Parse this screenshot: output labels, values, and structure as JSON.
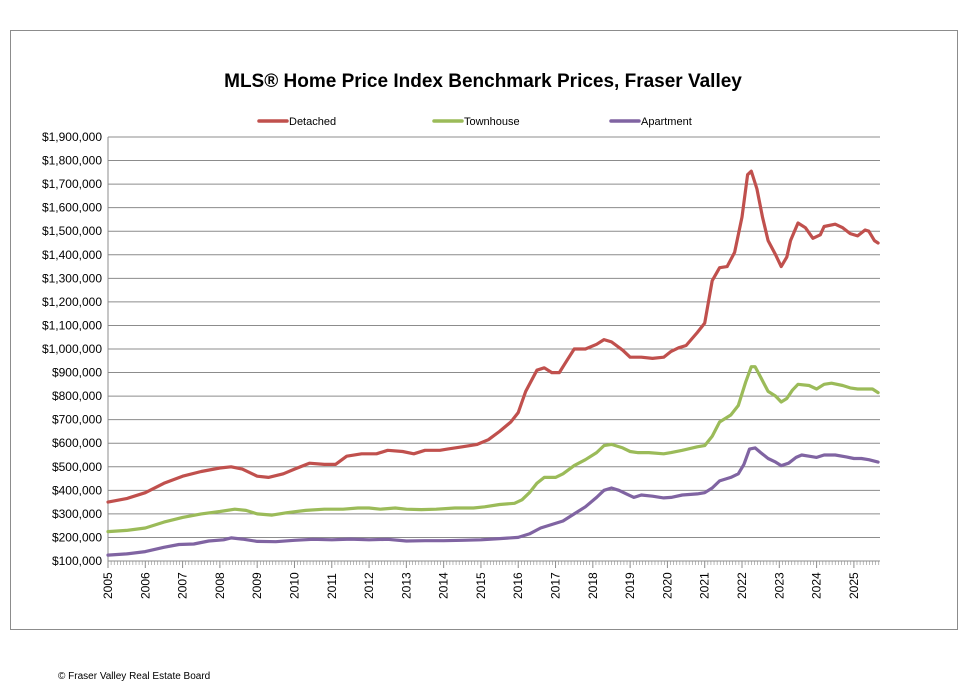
{
  "chart_data": {
    "type": "line",
    "title": "MLS® Home Price Index Benchmark Prices, Fraser Valley",
    "xlabel": "",
    "ylabel": "",
    "x_ticks": [
      "2005",
      "2006",
      "2007",
      "2008",
      "2009",
      "2010",
      "2011",
      "2012",
      "2013",
      "2014",
      "2015",
      "2016",
      "2017",
      "2018",
      "2019",
      "2020",
      "2021",
      "2022",
      "2023",
      "2024",
      "2025"
    ],
    "xlim": [
      2005,
      2025.7
    ],
    "ylim": [
      100000,
      1900000
    ],
    "y_ticks": [
      100000,
      200000,
      300000,
      400000,
      500000,
      600000,
      700000,
      800000,
      900000,
      1000000,
      1100000,
      1200000,
      1300000,
      1400000,
      1500000,
      1600000,
      1700000,
      1800000,
      1900000
    ],
    "y_tick_labels": [
      "$100,000",
      "$200,000",
      "$300,000",
      "$400,000",
      "$500,000",
      "$600,000",
      "$700,000",
      "$800,000",
      "$900,000",
      "$1,000,000",
      "$1,100,000",
      "$1,200,000",
      "$1,300,000",
      "$1,400,000",
      "$1,500,000",
      "$1,600,000",
      "$1,700,000",
      "$1,800,000",
      "$1,900,000"
    ],
    "grid": true,
    "legend_position": "top",
    "series": [
      {
        "name": "Detached",
        "color": "#c0504d",
        "points": [
          [
            2005,
            350000
          ],
          [
            2005.5,
            365000
          ],
          [
            2006,
            390000
          ],
          [
            2006.5,
            430000
          ],
          [
            2007,
            460000
          ],
          [
            2007.5,
            480000
          ],
          [
            2008,
            495000
          ],
          [
            2008.3,
            500000
          ],
          [
            2008.6,
            490000
          ],
          [
            2009,
            460000
          ],
          [
            2009.3,
            455000
          ],
          [
            2009.7,
            470000
          ],
          [
            2010,
            490000
          ],
          [
            2010.4,
            515000
          ],
          [
            2010.8,
            510000
          ],
          [
            2011.1,
            510000
          ],
          [
            2011.4,
            545000
          ],
          [
            2011.8,
            555000
          ],
          [
            2012.2,
            555000
          ],
          [
            2012.5,
            570000
          ],
          [
            2012.9,
            565000
          ],
          [
            2013.2,
            555000
          ],
          [
            2013.5,
            570000
          ],
          [
            2013.9,
            570000
          ],
          [
            2014.1,
            575000
          ],
          [
            2014.5,
            585000
          ],
          [
            2014.9,
            595000
          ],
          [
            2015.2,
            615000
          ],
          [
            2015.5,
            650000
          ],
          [
            2015.8,
            690000
          ],
          [
            2016,
            730000
          ],
          [
            2016.2,
            820000
          ],
          [
            2016.5,
            910000
          ],
          [
            2016.7,
            920000
          ],
          [
            2016.9,
            900000
          ],
          [
            2017.1,
            900000
          ],
          [
            2017.3,
            950000
          ],
          [
            2017.5,
            1000000
          ],
          [
            2017.8,
            1000000
          ],
          [
            2018.1,
            1020000
          ],
          [
            2018.3,
            1040000
          ],
          [
            2018.5,
            1030000
          ],
          [
            2018.8,
            995000
          ],
          [
            2019,
            965000
          ],
          [
            2019.3,
            965000
          ],
          [
            2019.6,
            960000
          ],
          [
            2019.9,
            965000
          ],
          [
            2020.1,
            990000
          ],
          [
            2020.3,
            1005000
          ],
          [
            2020.5,
            1015000
          ],
          [
            2020.8,
            1070000
          ],
          [
            2021,
            1110000
          ],
          [
            2021.2,
            1290000
          ],
          [
            2021.4,
            1345000
          ],
          [
            2021.6,
            1350000
          ],
          [
            2021.8,
            1410000
          ],
          [
            2022,
            1560000
          ],
          [
            2022.15,
            1740000
          ],
          [
            2022.25,
            1755000
          ],
          [
            2022.4,
            1680000
          ],
          [
            2022.55,
            1560000
          ],
          [
            2022.7,
            1460000
          ],
          [
            2022.9,
            1400000
          ],
          [
            2023.05,
            1350000
          ],
          [
            2023.2,
            1390000
          ],
          [
            2023.3,
            1460000
          ],
          [
            2023.5,
            1535000
          ],
          [
            2023.7,
            1515000
          ],
          [
            2023.9,
            1470000
          ],
          [
            2024.1,
            1485000
          ],
          [
            2024.2,
            1520000
          ],
          [
            2024.5,
            1530000
          ],
          [
            2024.7,
            1515000
          ],
          [
            2024.9,
            1490000
          ],
          [
            2025.1,
            1480000
          ],
          [
            2025.3,
            1505000
          ],
          [
            2025.4,
            1500000
          ],
          [
            2025.55,
            1460000
          ],
          [
            2025.65,
            1450000
          ]
        ]
      },
      {
        "name": "Townhouse",
        "color": "#9bbb59",
        "points": [
          [
            2005,
            225000
          ],
          [
            2005.5,
            230000
          ],
          [
            2006,
            240000
          ],
          [
            2006.5,
            265000
          ],
          [
            2007,
            285000
          ],
          [
            2007.5,
            300000
          ],
          [
            2008,
            310000
          ],
          [
            2008.4,
            320000
          ],
          [
            2008.7,
            315000
          ],
          [
            2009,
            300000
          ],
          [
            2009.4,
            295000
          ],
          [
            2009.8,
            305000
          ],
          [
            2010.3,
            315000
          ],
          [
            2010.8,
            320000
          ],
          [
            2011.3,
            320000
          ],
          [
            2011.7,
            325000
          ],
          [
            2012,
            325000
          ],
          [
            2012.3,
            320000
          ],
          [
            2012.7,
            325000
          ],
          [
            2013,
            320000
          ],
          [
            2013.4,
            318000
          ],
          [
            2013.8,
            320000
          ],
          [
            2014.3,
            325000
          ],
          [
            2014.8,
            325000
          ],
          [
            2015.1,
            330000
          ],
          [
            2015.5,
            340000
          ],
          [
            2015.9,
            345000
          ],
          [
            2016.1,
            360000
          ],
          [
            2016.3,
            390000
          ],
          [
            2016.5,
            430000
          ],
          [
            2016.7,
            455000
          ],
          [
            2017,
            455000
          ],
          [
            2017.2,
            470000
          ],
          [
            2017.5,
            505000
          ],
          [
            2017.8,
            530000
          ],
          [
            2018.1,
            560000
          ],
          [
            2018.3,
            590000
          ],
          [
            2018.5,
            595000
          ],
          [
            2018.8,
            580000
          ],
          [
            2019,
            565000
          ],
          [
            2019.2,
            560000
          ],
          [
            2019.5,
            560000
          ],
          [
            2019.9,
            555000
          ],
          [
            2020.1,
            560000
          ],
          [
            2020.4,
            570000
          ],
          [
            2020.8,
            585000
          ],
          [
            2021,
            590000
          ],
          [
            2021.2,
            630000
          ],
          [
            2021.4,
            690000
          ],
          [
            2021.7,
            720000
          ],
          [
            2021.9,
            760000
          ],
          [
            2022.1,
            860000
          ],
          [
            2022.25,
            925000
          ],
          [
            2022.35,
            925000
          ],
          [
            2022.5,
            880000
          ],
          [
            2022.7,
            820000
          ],
          [
            2022.9,
            800000
          ],
          [
            2023.05,
            775000
          ],
          [
            2023.2,
            790000
          ],
          [
            2023.35,
            825000
          ],
          [
            2023.5,
            850000
          ],
          [
            2023.8,
            845000
          ],
          [
            2024,
            830000
          ],
          [
            2024.2,
            850000
          ],
          [
            2024.4,
            855000
          ],
          [
            2024.7,
            845000
          ],
          [
            2024.9,
            835000
          ],
          [
            2025.1,
            830000
          ],
          [
            2025.3,
            830000
          ],
          [
            2025.5,
            830000
          ],
          [
            2025.65,
            815000
          ]
        ]
      },
      {
        "name": "Apartment",
        "color": "#8064a2",
        "points": [
          [
            2005,
            125000
          ],
          [
            2005.5,
            130000
          ],
          [
            2006,
            140000
          ],
          [
            2006.5,
            158000
          ],
          [
            2006.9,
            170000
          ],
          [
            2007.3,
            172000
          ],
          [
            2007.7,
            185000
          ],
          [
            2008.1,
            190000
          ],
          [
            2008.3,
            198000
          ],
          [
            2008.6,
            193000
          ],
          [
            2009,
            183000
          ],
          [
            2009.5,
            182000
          ],
          [
            2010,
            188000
          ],
          [
            2010.5,
            192000
          ],
          [
            2011,
            190000
          ],
          [
            2011.5,
            193000
          ],
          [
            2012,
            190000
          ],
          [
            2012.5,
            192000
          ],
          [
            2013,
            185000
          ],
          [
            2013.5,
            186000
          ],
          [
            2014,
            186000
          ],
          [
            2014.5,
            188000
          ],
          [
            2015,
            190000
          ],
          [
            2015.5,
            195000
          ],
          [
            2016,
            200000
          ],
          [
            2016.3,
            215000
          ],
          [
            2016.6,
            240000
          ],
          [
            2016.9,
            255000
          ],
          [
            2017.2,
            270000
          ],
          [
            2017.5,
            300000
          ],
          [
            2017.8,
            330000
          ],
          [
            2018.1,
            370000
          ],
          [
            2018.3,
            400000
          ],
          [
            2018.5,
            410000
          ],
          [
            2018.7,
            400000
          ],
          [
            2018.9,
            385000
          ],
          [
            2019.1,
            370000
          ],
          [
            2019.3,
            380000
          ],
          [
            2019.6,
            375000
          ],
          [
            2019.9,
            368000
          ],
          [
            2020.1,
            370000
          ],
          [
            2020.4,
            380000
          ],
          [
            2020.8,
            385000
          ],
          [
            2021,
            390000
          ],
          [
            2021.2,
            410000
          ],
          [
            2021.4,
            440000
          ],
          [
            2021.7,
            455000
          ],
          [
            2021.9,
            470000
          ],
          [
            2022.05,
            510000
          ],
          [
            2022.2,
            575000
          ],
          [
            2022.35,
            580000
          ],
          [
            2022.5,
            560000
          ],
          [
            2022.7,
            535000
          ],
          [
            2022.9,
            520000
          ],
          [
            2023.05,
            505000
          ],
          [
            2023.25,
            515000
          ],
          [
            2023.45,
            540000
          ],
          [
            2023.6,
            550000
          ],
          [
            2023.8,
            545000
          ],
          [
            2024,
            540000
          ],
          [
            2024.2,
            550000
          ],
          [
            2024.5,
            550000
          ],
          [
            2024.8,
            542000
          ],
          [
            2025,
            535000
          ],
          [
            2025.2,
            535000
          ],
          [
            2025.4,
            530000
          ],
          [
            2025.65,
            520000
          ]
        ]
      }
    ]
  },
  "footer": {
    "copyright": "© Fraser Valley Real Estate Board"
  }
}
